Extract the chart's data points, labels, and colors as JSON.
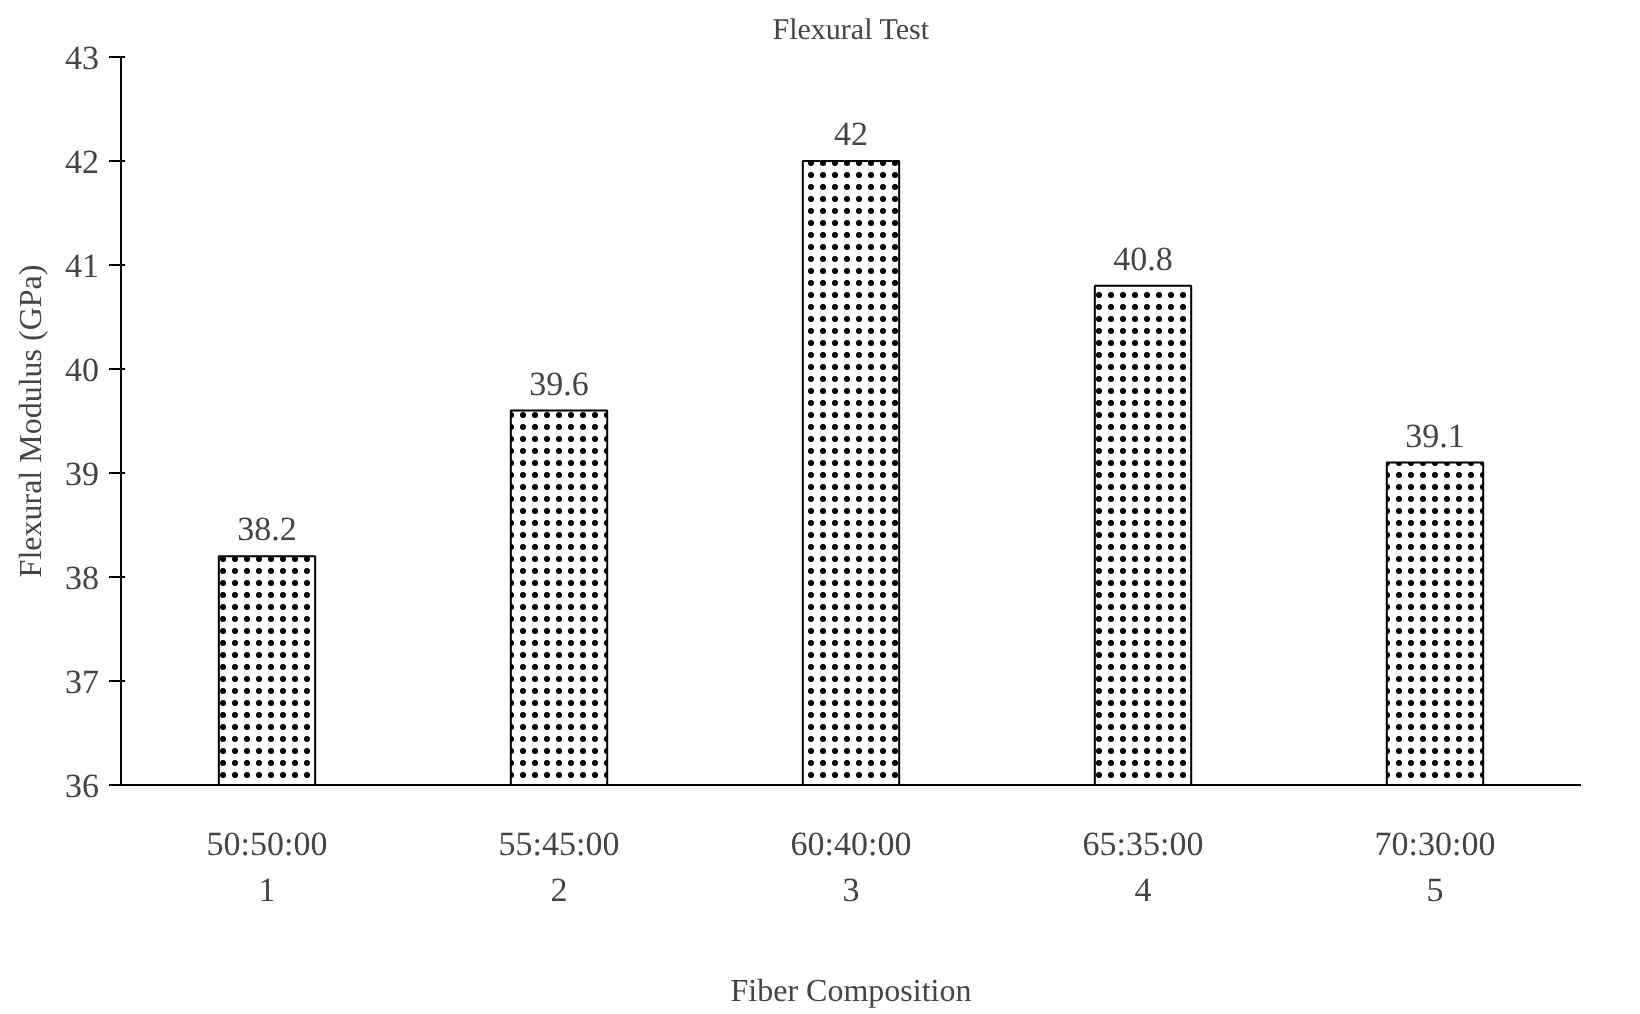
{
  "chart_data": {
    "type": "bar",
    "title": "Flexural Test",
    "xlabel": "Fiber Composition",
    "ylabel": "Flexural Modulus (GPa)",
    "categories": [
      "50:50:00\n1",
      "55:45:00\n2",
      "60:40:00\n3",
      "65:35:00\n4",
      "70:30:00\n5"
    ],
    "values": [
      38.2,
      39.6,
      42,
      40.8,
      39.1
    ],
    "color": "#ffffff",
    "ylim": [
      36,
      43
    ],
    "yticks": [
      36,
      37,
      38,
      39,
      40,
      41,
      42,
      43
    ],
    "grid": false,
    "data_labels": true
  }
}
